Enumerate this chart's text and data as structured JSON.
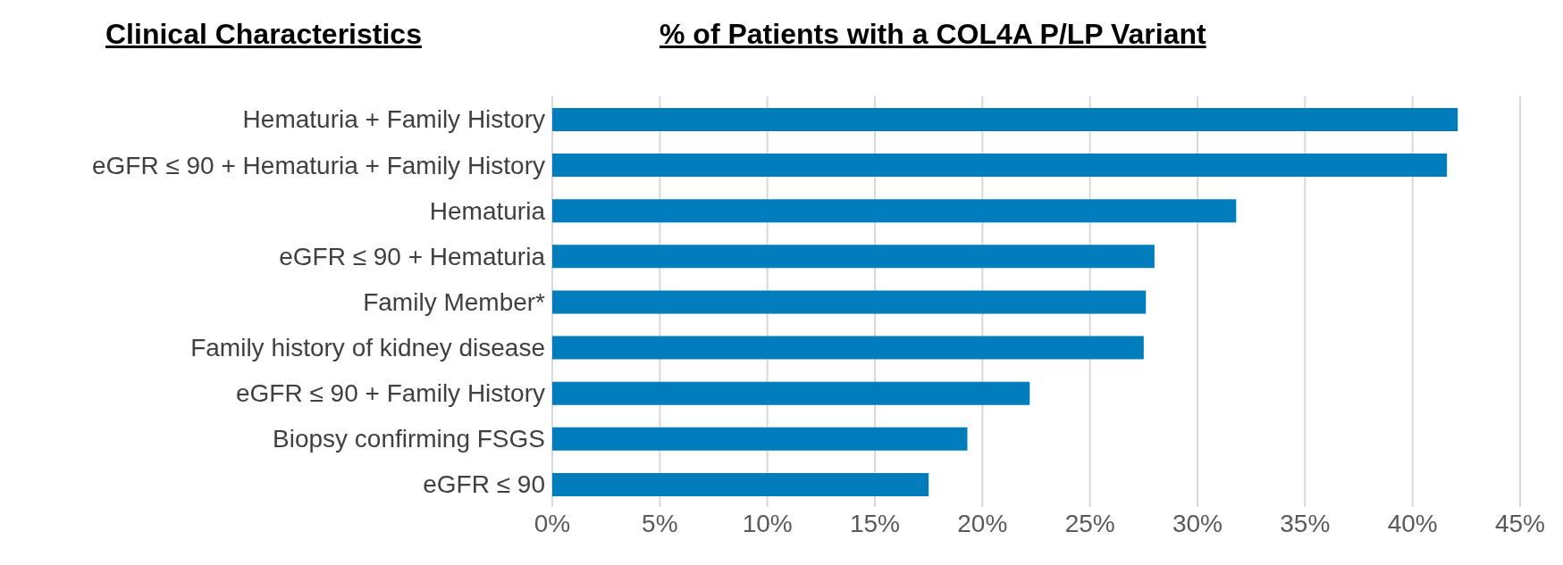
{
  "chart_data": {
    "type": "bar",
    "orientation": "horizontal",
    "title": "% of Patients with a COL4A P/LP Variant",
    "ylabel": "Clinical Characteristics",
    "categories": [
      "Hematuria + Family History",
      "eGFR ≤ 90 + Hematuria + Family History",
      "Hematuria",
      "eGFR ≤ 90 + Hematuria",
      "Family Member*",
      "Family history of kidney disease",
      "eGFR ≤ 90 + Family History",
      "Biopsy confirming FSGS",
      "eGFR ≤ 90"
    ],
    "values": [
      42.1,
      41.6,
      31.8,
      28.0,
      27.6,
      27.5,
      22.2,
      19.3,
      17.5
    ],
    "color": "#027dbc",
    "xlim": [
      0,
      45
    ],
    "xticks": [
      {
        "value": 0,
        "label": "0%"
      },
      {
        "value": 5,
        "label": "5%"
      },
      {
        "value": 10,
        "label": "10%"
      },
      {
        "value": 15,
        "label": "15%"
      },
      {
        "value": 20,
        "label": "20%"
      },
      {
        "value": 25,
        "label": "25%"
      },
      {
        "value": 30,
        "label": "30%"
      },
      {
        "value": 35,
        "label": "35%"
      },
      {
        "value": 40,
        "label": "40%"
      },
      {
        "value": 45,
        "label": "45%"
      }
    ],
    "grid": "x"
  }
}
